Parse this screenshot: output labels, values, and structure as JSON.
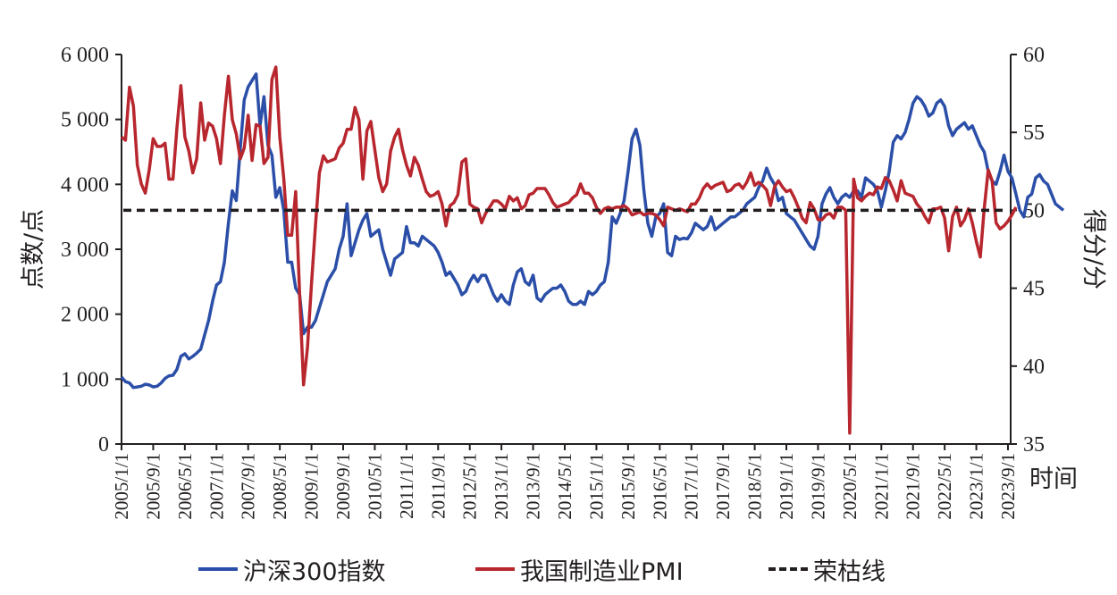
{
  "chart_data": {
    "type": "line",
    "title": "",
    "xlabel": "时间",
    "ylabel_left": "点数/点",
    "ylabel_right": "得分/分",
    "ylim_left": [
      0,
      6000
    ],
    "ylim_right": [
      35,
      60
    ],
    "yticks_left": [
      "0",
      "1 000",
      "2 000",
      "3 000",
      "4 000",
      "5 000",
      "6 000"
    ],
    "yticks_right": [
      "35",
      "40",
      "45",
      "50",
      "55",
      "60"
    ],
    "xtick_labels": [
      "2005/1/1",
      "2005/9/1",
      "2006/5/1",
      "2007/1/1",
      "2007/9/1",
      "2008/5/1",
      "2009/1/1",
      "2009/9/1",
      "2010/5/1",
      "2011/1/1",
      "2011/9/1",
      "2012/5/1",
      "2013/1/1",
      "2013/9/1",
      "2014/5/1",
      "2015/1/1",
      "2015/9/1",
      "2016/5/1",
      "2017/1/1",
      "2017/9/1",
      "2018/5/1",
      "2019/1/1",
      "2019/9/1",
      "2020/5/1",
      "2021/1/1",
      "2021/9/1",
      "2022/5/1",
      "2023/1/1",
      "2023/9/1"
    ],
    "x_start": "2005/1",
    "x_end": "2023/9",
    "frequency": "monthly",
    "grid": false,
    "legend_position": "bottom",
    "reference_line": {
      "name": "荣枯线",
      "axis": "right",
      "value": 50,
      "style": "dashed",
      "color": "#231f20"
    },
    "series": [
      {
        "name": "沪深300指数",
        "axis": "left",
        "color": "#2b4fa8",
        "values": [
          1030,
          960,
          940,
          870,
          880,
          890,
          920,
          910,
          880,
          890,
          940,
          1010,
          1050,
          1060,
          1150,
          1350,
          1390,
          1310,
          1350,
          1400,
          1460,
          1680,
          1900,
          2200,
          2450,
          2500,
          2800,
          3400,
          3900,
          3750,
          4550,
          5300,
          5500,
          5600,
          5700,
          4900,
          5350,
          4600,
          4450,
          3800,
          3950,
          3600,
          2800,
          2800,
          2400,
          2300,
          1700,
          1800,
          1800,
          1900,
          2100,
          2300,
          2500,
          2600,
          2700,
          3000,
          3200,
          3700,
          2900,
          3100,
          3300,
          3450,
          3550,
          3200,
          3250,
          3300,
          3000,
          2800,
          2600,
          2850,
          2900,
          2950,
          3350,
          3100,
          3100,
          3050,
          3200,
          3150,
          3100,
          3050,
          2950,
          2800,
          2600,
          2650,
          2550,
          2450,
          2300,
          2350,
          2500,
          2600,
          2500,
          2600,
          2600,
          2450,
          2300,
          2200,
          2300,
          2200,
          2150,
          2450,
          2650,
          2700,
          2500,
          2450,
          2600,
          2250,
          2200,
          2300,
          2350,
          2400,
          2400,
          2450,
          2350,
          2200,
          2150,
          2150,
          2200,
          2150,
          2350,
          2300,
          2350,
          2450,
          2500,
          2800,
          3500,
          3400,
          3550,
          3750,
          4200,
          4700,
          4850,
          4600,
          3900,
          3400,
          3200,
          3500,
          3550,
          3700,
          2950,
          2900,
          3200,
          3150,
          3170,
          3160,
          3250,
          3400,
          3350,
          3300,
          3350,
          3500,
          3300,
          3350,
          3400,
          3450,
          3500,
          3500,
          3550,
          3600,
          3700,
          3750,
          3800,
          3950,
          4050,
          4250,
          4100,
          4000,
          3750,
          3800,
          3550,
          3500,
          3450,
          3350,
          3250,
          3150,
          3050,
          3000,
          3200,
          3700,
          3850,
          3950,
          3800,
          3700,
          3800,
          3850,
          3800,
          3900,
          3900,
          3800,
          4100,
          4050,
          4000,
          3900,
          3650,
          3900,
          4200,
          4650,
          4750,
          4700,
          4800,
          5000,
          5250,
          5350,
          5300,
          5200,
          5050,
          5100,
          5250,
          5300,
          5200,
          4900,
          4750,
          4850,
          4900,
          4950,
          4850,
          4900,
          4750,
          4600,
          4500,
          4200,
          4050,
          4000,
          4200,
          4450,
          4200,
          4100,
          3850,
          3600,
          3500,
          3800,
          3850,
          4100,
          4150,
          4050,
          4000,
          3850,
          3700,
          3650,
          3600
        ]
      },
      {
        "name": "我国制造业PMI",
        "axis": "right",
        "color": "#b8262e",
        "values": [
          54.7,
          54.5,
          57.9,
          56.7,
          52.9,
          51.7,
          51.1,
          52.6,
          54.6,
          54.1,
          54.1,
          54.3,
          52.0,
          52.0,
          55.3,
          58.0,
          54.7,
          53.8,
          52.4,
          53.3,
          56.9,
          54.5,
          55.6,
          55.4,
          54.6,
          53.0,
          56.1,
          58.6,
          55.8,
          54.9,
          53.3,
          54.0,
          56.1,
          53.2,
          55.5,
          55.4,
          53.0,
          53.4,
          58.4,
          59.2,
          54.7,
          52.0,
          48.4,
          48.4,
          51.2,
          44.6,
          38.8,
          41.2,
          45.3,
          49.0,
          52.4,
          53.5,
          53.1,
          53.2,
          53.3,
          54.0,
          54.3,
          55.2,
          55.2,
          56.6,
          55.8,
          52.0,
          55.1,
          55.7,
          53.9,
          52.1,
          51.2,
          51.7,
          53.8,
          54.7,
          55.2,
          53.9,
          52.9,
          52.2,
          53.4,
          52.9,
          52.0,
          51.2,
          50.9,
          51.0,
          51.2,
          50.4,
          49.0,
          50.3,
          50.5,
          51.0,
          53.1,
          53.3,
          50.4,
          50.2,
          50.1,
          49.2,
          49.8,
          50.2,
          50.6,
          50.6,
          50.4,
          50.1,
          50.9,
          50.6,
          50.8,
          50.1,
          50.3,
          51.0,
          51.1,
          51.4,
          51.4,
          51.4,
          51.0,
          50.5,
          50.2,
          50.3,
          50.4,
          50.5,
          50.8,
          51.0,
          51.7,
          51.1,
          51.1,
          50.8,
          50.2,
          49.8,
          50.1,
          50.2,
          50.1,
          50.2,
          50.2,
          50.3,
          50.1,
          49.7,
          49.8,
          49.9,
          49.7,
          49.8,
          49.8,
          49.7,
          49.4,
          49.0,
          50.2,
          50.1,
          50.0,
          50.1,
          50.0,
          49.9,
          50.4,
          50.4,
          50.8,
          51.4,
          51.7,
          51.4,
          51.6,
          51.7,
          51.8,
          51.2,
          51.3,
          51.6,
          51.7,
          51.4,
          51.8,
          52.4,
          51.6,
          51.8,
          51.6,
          51.3,
          50.3,
          51.5,
          51.9,
          51.5,
          51.2,
          51.3,
          50.8,
          50.2,
          49.5,
          49.2,
          50.5,
          50.1,
          49.4,
          49.4,
          49.7,
          49.8,
          49.5,
          50.2,
          50.2,
          50.0,
          35.7,
          52.0,
          50.8,
          50.6,
          50.9,
          51.1,
          51.0,
          51.5,
          51.4,
          52.1,
          51.9,
          51.3,
          50.6,
          51.9,
          51.1,
          51.0,
          50.9,
          50.4,
          50.1,
          49.6,
          49.2,
          50.1,
          50.1,
          50.2,
          49.5,
          47.4,
          49.6,
          50.2,
          49.0,
          49.4,
          50.1,
          49.2,
          48.0,
          47.0,
          50.1,
          52.6,
          51.9,
          49.2,
          48.8,
          49.0,
          49.3,
          49.7,
          50.2
        ]
      },
      {
        "name": "荣枯线",
        "axis": "right",
        "color": "#231f20",
        "style": "dashed",
        "values": [
          50
        ]
      }
    ]
  },
  "legend": {
    "items": [
      {
        "label": "沪深300指数",
        "color": "#2b4fa8",
        "style": "solid"
      },
      {
        "label": "我国制造业PMI",
        "color": "#b8262e",
        "style": "solid"
      },
      {
        "label": "荣枯线",
        "color": "#231f20",
        "style": "dashed"
      }
    ]
  }
}
